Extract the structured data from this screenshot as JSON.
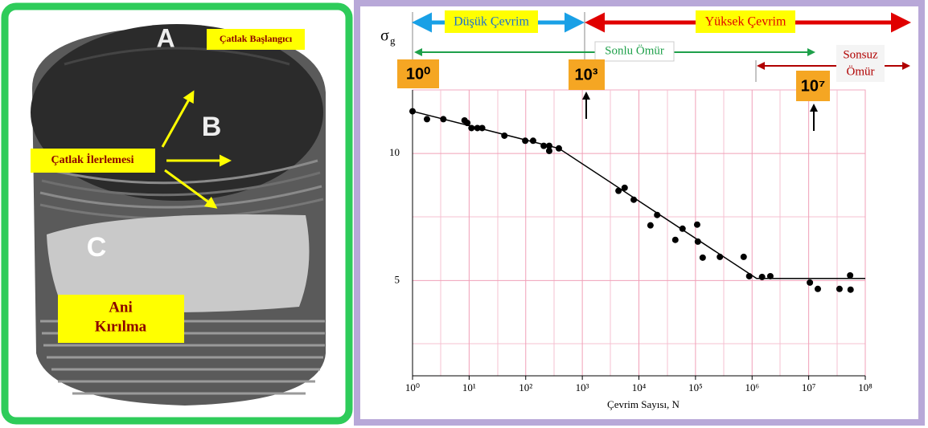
{
  "photo": {
    "labels": {
      "a": "A",
      "b": "B",
      "c": "C",
      "crack_start": "Çatlak Başlangıcı",
      "crack_growth": "Çatlak İlerlemesi",
      "fracture": [
        "Ani",
        "Kırılma"
      ]
    }
  },
  "chart_data": {
    "type": "scatter",
    "y_label": "σ",
    "y_label_sub": "g",
    "x_label": "Çevrim Sayısı, N",
    "x_scale": "log",
    "xlim": [
      1,
      100000000
    ],
    "ylim": [
      1.25,
      12.5
    ],
    "xticks": [
      {
        "value": 1,
        "label": "10⁰"
      },
      {
        "value": 10,
        "label": "10¹"
      },
      {
        "value": 100,
        "label": "10²"
      },
      {
        "value": 1000,
        "label": "10³"
      },
      {
        "value": 10000,
        "label": "10⁴"
      },
      {
        "value": 100000,
        "label": "10⁵"
      },
      {
        "value": 1000000,
        "label": "10⁶"
      },
      {
        "value": 10000000,
        "label": "10⁷"
      },
      {
        "value": 100000000,
        "label": "10⁸"
      }
    ],
    "yticks": [
      5,
      10
    ],
    "grid": true,
    "annotations": {
      "low_cycle": "Düşük Çevrim",
      "high_cycle": "Yüksek Çevrim",
      "finite_life": "Sonlu Ömür",
      "infinite_life": [
        "Sonsuz",
        "Ömür"
      ],
      "marker_0": "10⁰",
      "marker_3": "10³",
      "marker_7": "10⁷"
    },
    "series": [
      {
        "color": "#000000",
        "x": [
          1,
          1.8,
          3.5,
          8.3,
          9.3,
          11,
          14,
          17,
          42,
          98,
          135,
          208,
          260,
          260,
          385,
          4360,
          5600,
          8100,
          21000,
          16000,
          59000,
          44000,
          107000,
          110000,
          134000,
          270000,
          710000,
          890000,
          1500000,
          2100000,
          10500000,
          14500000,
          35000000,
          54000000,
          55000000
        ],
        "values": [
          11.66,
          11.35,
          11.35,
          11.3,
          11.2,
          11.0,
          11.0,
          11.0,
          10.7,
          10.5,
          10.5,
          10.3,
          10.3,
          10.1,
          10.2,
          8.53,
          8.65,
          8.18,
          7.58,
          7.17,
          7.04,
          6.6,
          7.2,
          6.53,
          5.9,
          5.93,
          5.93,
          5.17,
          5.14,
          5.17,
          4.92,
          4.67,
          4.67,
          5.2,
          4.64
        ]
      },
      {
        "type": "line",
        "color": "#000000",
        "x": [
          1,
          385,
          1200000,
          100000000
        ],
        "values": [
          11.66,
          10.2,
          5.08,
          5.08
        ]
      }
    ]
  }
}
